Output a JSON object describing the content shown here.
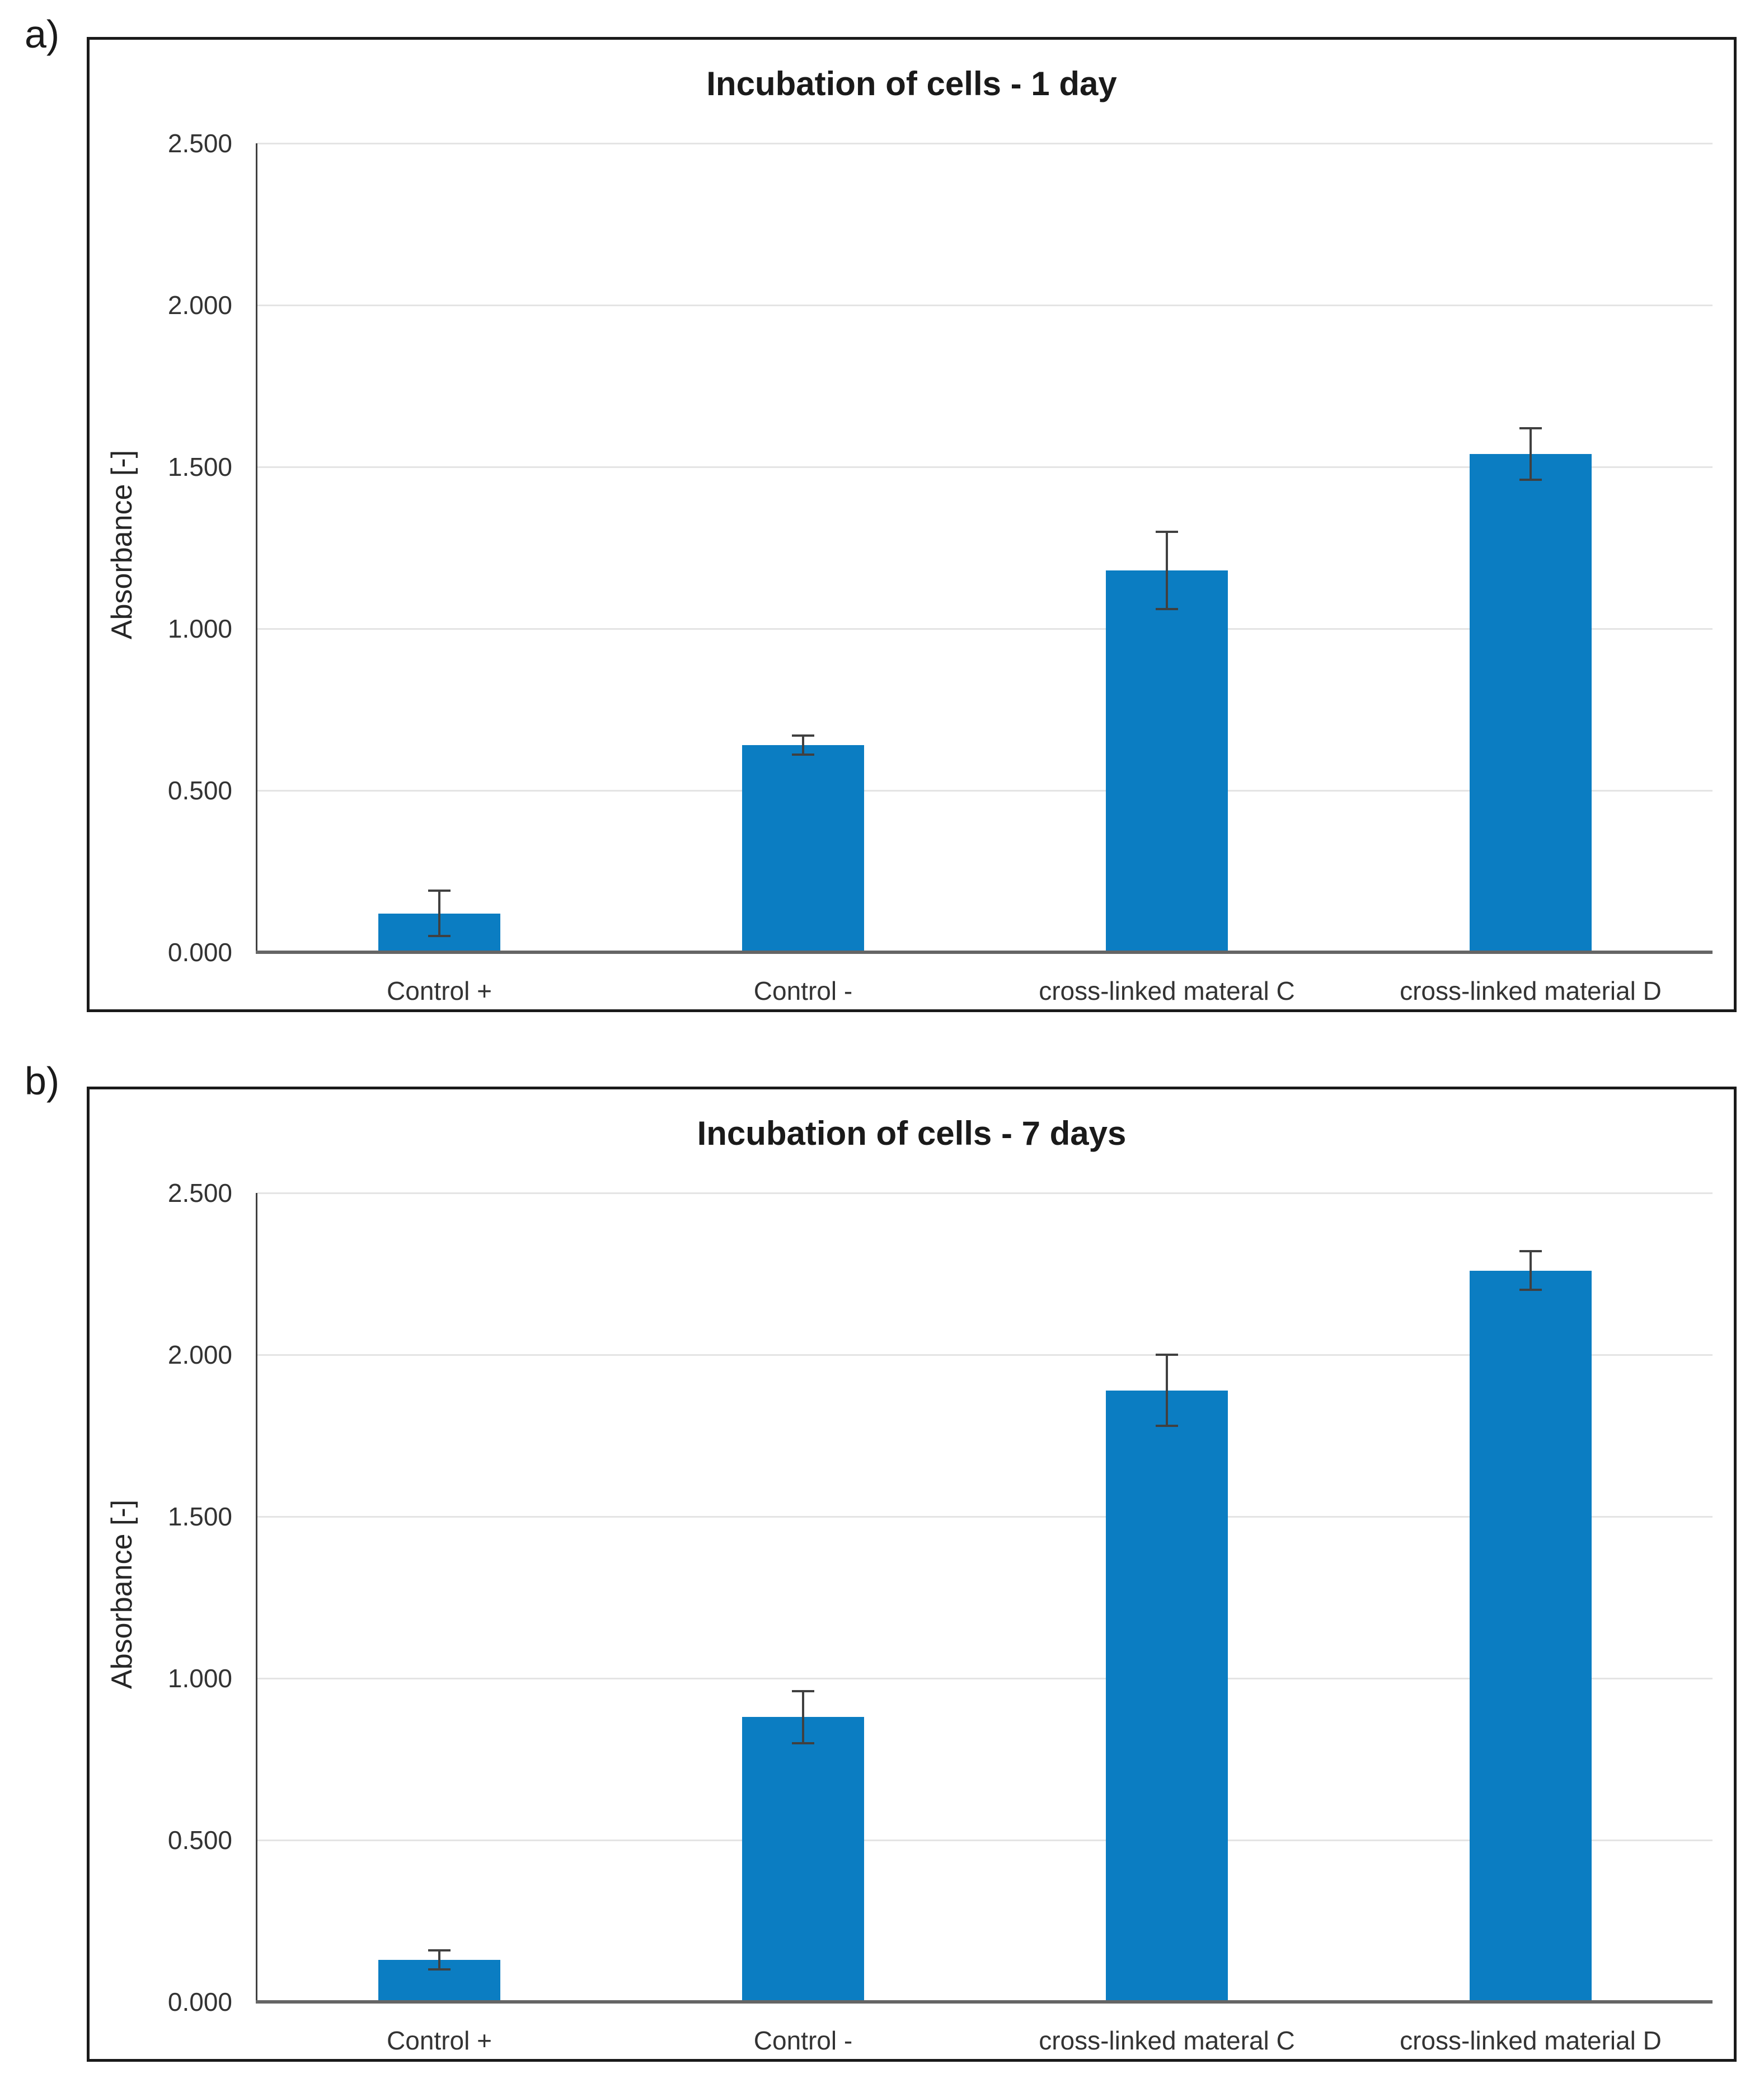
{
  "figure_labels": [
    "a)",
    "b)"
  ],
  "colors": {
    "bar": "#0b7dc2",
    "gridline": "#e4e4e4",
    "y_axis_line": "#404040",
    "x_axis_line": "#656565",
    "error_bar": "#404040",
    "panel_border": "#1a1a1a",
    "text": "#333333"
  },
  "chart_data": [
    {
      "type": "bar",
      "title": "Incubation of cells - 1 day",
      "xlabel": "",
      "ylabel": "Absorbance [-]",
      "categories": [
        "Control +",
        "Control -",
        "cross-linked materal C",
        "cross-linked material D"
      ],
      "values": [
        0.12,
        0.64,
        1.18,
        1.54
      ],
      "errors": [
        0.07,
        0.03,
        0.12,
        0.08
      ],
      "ylim": [
        0,
        2.5
      ],
      "ytick_step": 0.5,
      "ytick_labels": [
        "0.000",
        "0.500",
        "1.000",
        "1.500",
        "2.000",
        "2.500"
      ],
      "grid": true,
      "legend": "none"
    },
    {
      "type": "bar",
      "title": "Incubation of cells - 7 days",
      "xlabel": "",
      "ylabel": "Absorbance [-]",
      "categories": [
        "Control +",
        "Control -",
        "cross-linked materal C",
        "cross-linked material D"
      ],
      "values": [
        0.13,
        0.88,
        1.89,
        2.26
      ],
      "errors": [
        0.03,
        0.08,
        0.11,
        0.06
      ],
      "ylim": [
        0,
        2.5
      ],
      "ytick_step": 0.5,
      "ytick_labels": [
        "0.000",
        "0.500",
        "1.000",
        "1.500",
        "2.000",
        "2.500"
      ],
      "grid": true,
      "legend": "none"
    }
  ]
}
